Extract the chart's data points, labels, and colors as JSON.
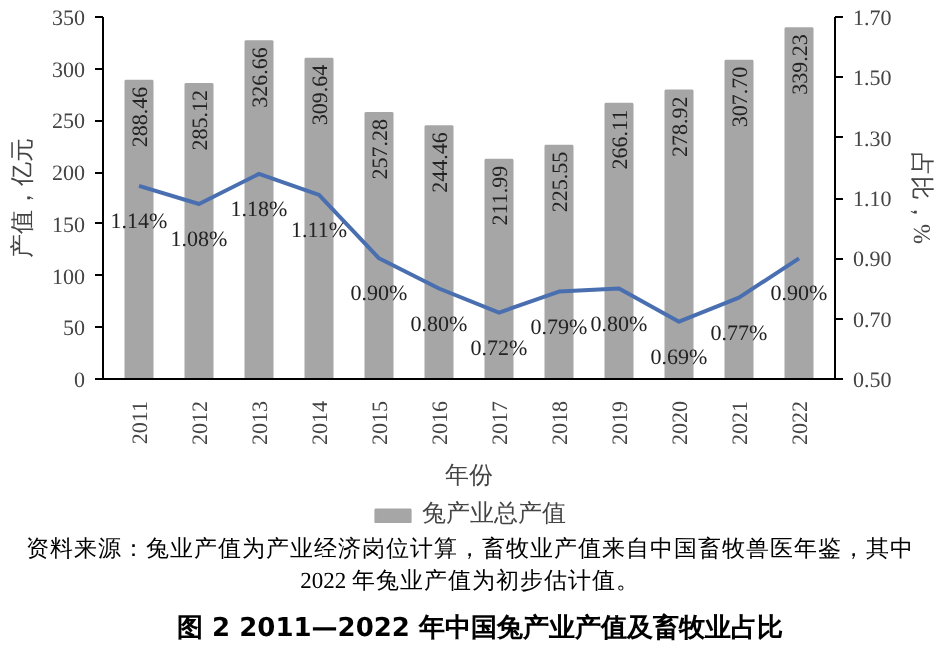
{
  "chart_data": {
    "type": "bar",
    "title": "图 2 2011—2022 年中国兔产业产值及畜牧业占比",
    "xlabel": "年份",
    "ylabel": "产值，亿元",
    "y2label": "占比，%",
    "categories": [
      "2011",
      "2012",
      "2013",
      "2014",
      "2015",
      "2016",
      "2017",
      "2018",
      "2019",
      "2020",
      "2021",
      "2022"
    ],
    "series": [
      {
        "name": "兔产业总产值",
        "color": "#a6a6a6",
        "values": [
          288.46,
          285.12,
          326.66,
          309.64,
          257.28,
          244.46,
          211.99,
          225.55,
          266.11,
          278.92,
          307.7,
          339.23
        ],
        "value_labels": [
          "288.46",
          "285.12",
          "326.66",
          "309.64",
          "257.28",
          "244.46",
          "211.99",
          "225.55",
          "266.11",
          "278.92",
          "307.70",
          "339.23"
        ]
      },
      {
        "type": "line",
        "axis": "y2",
        "color": "#4a6fb0",
        "values": [
          1.14,
          1.08,
          1.18,
          1.11,
          0.9,
          0.8,
          0.72,
          0.79,
          0.8,
          0.69,
          0.77,
          0.9
        ],
        "value_labels": [
          "1.14%",
          "1.08%",
          "1.18%",
          "1.11%",
          "0.90%",
          "0.80%",
          "0.72%",
          "0.79%",
          "0.80%",
          "0.69%",
          "0.77%",
          "0.90%"
        ]
      }
    ],
    "ylim": [
      0,
      350
    ],
    "yticks": [
      0,
      50,
      100,
      150,
      200,
      250,
      300,
      350
    ],
    "y2lim": [
      0.5,
      1.7
    ],
    "y2ticks": [
      {
        "value": 0.5,
        "label": "0.50"
      },
      {
        "value": 0.7,
        "label": "0.70"
      },
      {
        "value": 0.9,
        "label": "0.90"
      },
      {
        "value": 1.1,
        "label": "1.10"
      },
      {
        "value": 1.3,
        "label": "1.30"
      },
      {
        "value": 1.5,
        "label": "1.50"
      },
      {
        "value": 1.7,
        "label": "1.70"
      }
    ],
    "legend": "bottom",
    "grid": false,
    "annotations": [
      "资料来源：兔业产值为产业经济岗位计算，畜牧业产值来自中国畜牧兽医年鉴，其中 2022 年兔业产值为初步估计值。"
    ]
  }
}
